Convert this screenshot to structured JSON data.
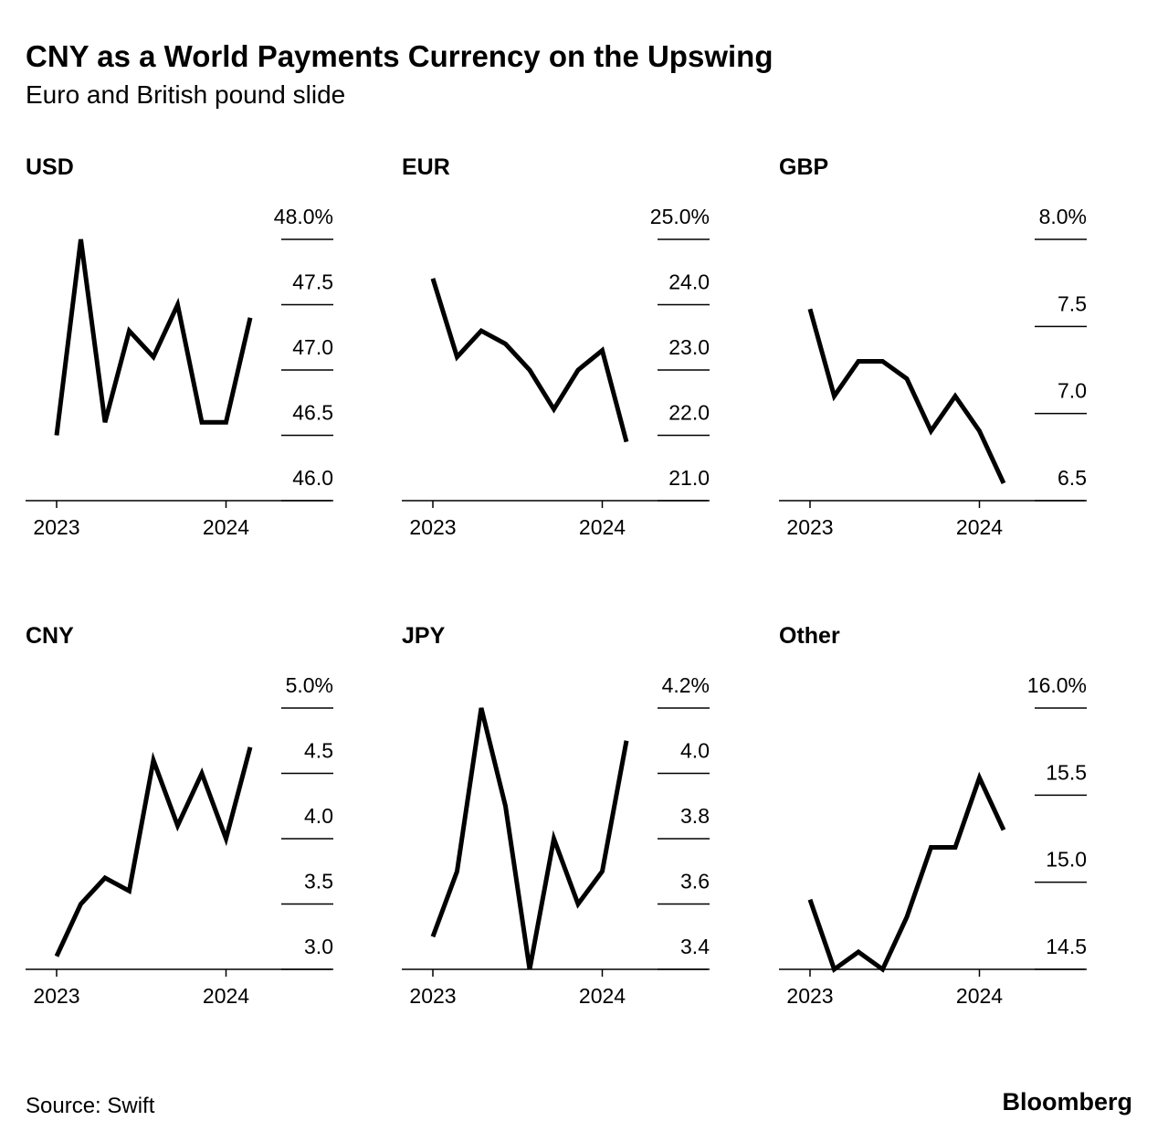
{
  "title": "CNY as a World Payments Currency on the Upswing",
  "subtitle": "Euro and British pound slide",
  "source": "Source: Swift",
  "brand": "Bloomberg",
  "chart_data": [
    {
      "type": "line",
      "title": "USD",
      "color": "#000000",
      "categories": [
        "2023",
        null,
        null,
        null,
        null,
        null,
        null,
        "2024",
        null
      ],
      "values": [
        46.5,
        48.0,
        46.6,
        47.3,
        47.1,
        47.5,
        46.6,
        46.6,
        47.4
      ],
      "ylim": [
        46,
        48
      ],
      "yticks": [
        {
          "value": 46,
          "label": "46.0"
        },
        46.5,
        {
          "value": 47,
          "label": "47.0"
        },
        47.5,
        {
          "value": 48,
          "label": "48.0%"
        }
      ]
    },
    {
      "type": "line",
      "title": "EUR",
      "color": "#000000",
      "categories": [
        "2023",
        null,
        null,
        null,
        null,
        null,
        null,
        "2024",
        null
      ],
      "values": [
        24.4,
        23.2,
        23.6,
        23.4,
        23.0,
        22.4,
        23.0,
        23.3,
        21.9
      ],
      "ylim": [
        21,
        25
      ],
      "yticks": [
        {
          "value": 21,
          "label": "21.0"
        },
        {
          "value": 22,
          "label": "22.0"
        },
        {
          "value": 23,
          "label": "23.0"
        },
        {
          "value": 24,
          "label": "24.0"
        },
        {
          "value": 25,
          "label": "25.0%"
        }
      ]
    },
    {
      "type": "line",
      "title": "GBP",
      "color": "#000000",
      "categories": [
        "2023",
        null,
        null,
        null,
        null,
        null,
        null,
        "2024",
        null
      ],
      "values": [
        7.6,
        7.1,
        7.3,
        7.3,
        7.2,
        6.9,
        7.1,
        6.9,
        6.6
      ],
      "ylim": [
        6.5,
        8
      ],
      "yticks": [
        6.5,
        {
          "value": 7,
          "label": "7.0"
        },
        7.5,
        {
          "value": 8,
          "label": "8.0%"
        }
      ]
    },
    {
      "type": "line",
      "title": "CNY",
      "color": "#000000",
      "categories": [
        "2023",
        null,
        null,
        null,
        null,
        null,
        null,
        "2024",
        null
      ],
      "values": [
        3.1,
        3.5,
        3.7,
        3.6,
        4.6,
        4.1,
        4.5,
        4.0,
        4.7
      ],
      "ylim": [
        3,
        5
      ],
      "yticks": [
        {
          "value": 3,
          "label": "3.0"
        },
        3.5,
        {
          "value": 4,
          "label": "4.0"
        },
        4.5,
        {
          "value": 5,
          "label": "5.0%"
        }
      ]
    },
    {
      "type": "line",
      "title": "JPY",
      "color": "#000000",
      "categories": [
        "2023",
        null,
        null,
        null,
        null,
        null,
        null,
        "2024",
        null
      ],
      "values": [
        3.5,
        3.7,
        4.2,
        3.9,
        3.4,
        3.8,
        3.6,
        3.7,
        4.1
      ],
      "ylim": [
        3.4,
        4.2
      ],
      "yticks": [
        3.4,
        3.6,
        3.8,
        {
          "value": 4,
          "label": "4.0"
        },
        {
          "value": 4.2,
          "label": "4.2%"
        }
      ]
    },
    {
      "type": "line",
      "title": "Other",
      "color": "#000000",
      "categories": [
        "2023",
        null,
        null,
        null,
        null,
        null,
        null,
        "2024",
        null
      ],
      "values": [
        14.9,
        14.5,
        14.6,
        14.5,
        14.8,
        15.2,
        15.2,
        15.6,
        15.3
      ],
      "ylim": [
        14.5,
        16
      ],
      "yticks": [
        14.5,
        {
          "value": 15,
          "label": "15.0"
        },
        15.5,
        {
          "value": 16,
          "label": "16.0%"
        }
      ]
    }
  ]
}
